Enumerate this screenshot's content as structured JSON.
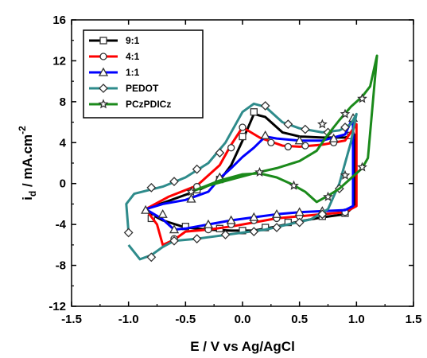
{
  "chart_data": {
    "type": "line",
    "xlabel": "E / V vs Ag/AgCl",
    "ylabel_main": "i",
    "ylabel_sub": "d",
    "ylabel_rest": " / mA.cm",
    "ylabel_sup": "-2",
    "xlim": [
      -1.5,
      1.5
    ],
    "ylim": [
      -12,
      16
    ],
    "xticks": [
      "-1.5",
      "-1.0",
      "-0.5",
      "0.0",
      "0.5",
      "1.0",
      "1.5"
    ],
    "yticks": [
      "-12",
      "-8",
      "-4",
      "0",
      "4",
      "8",
      "12",
      "16"
    ],
    "legend_position": "top-left",
    "grid": false,
    "series": [
      {
        "name": "9:1",
        "color": "#000000",
        "marker": "square",
        "points": [
          [
            -0.85,
            -2.5
          ],
          [
            -0.6,
            -1.5
          ],
          [
            -0.4,
            -0.7
          ],
          [
            -0.2,
            0.3
          ],
          [
            -0.1,
            1.8
          ],
          [
            0.0,
            4.2
          ],
          [
            0.1,
            6.8
          ],
          [
            0.2,
            6.5
          ],
          [
            0.35,
            5.0
          ],
          [
            0.5,
            4.6
          ],
          [
            0.7,
            4.5
          ],
          [
            0.9,
            4.5
          ],
          [
            0.98,
            4.8
          ],
          [
            0.98,
            -2.2
          ],
          [
            0.9,
            -3.0
          ],
          [
            0.7,
            -3.3
          ],
          [
            0.5,
            -3.7
          ],
          [
            0.3,
            -4.2
          ],
          [
            0.1,
            -4.6
          ],
          [
            -0.1,
            -4.6
          ],
          [
            -0.3,
            -4.5
          ],
          [
            -0.5,
            -4.3
          ],
          [
            -0.7,
            -3.6
          ],
          [
            -0.8,
            -3.0
          ],
          [
            -0.85,
            -2.5
          ]
        ],
        "markers": [
          [
            0.1,
            7.0
          ],
          [
            0.0,
            4.6
          ],
          [
            -0.2,
            0.4
          ],
          [
            -0.4,
            -0.6
          ],
          [
            -0.5,
            -4.2
          ],
          [
            -0.2,
            -4.4
          ],
          [
            0.0,
            -4.6
          ],
          [
            0.2,
            -4.3
          ],
          [
            0.4,
            -3.8
          ],
          [
            0.7,
            -3.2
          ],
          [
            0.9,
            -2.9
          ],
          [
            0.95,
            4.7
          ],
          [
            -0.8,
            -3.4
          ]
        ]
      },
      {
        "name": "4:1",
        "color": "#ff0000",
        "marker": "circle",
        "points": [
          [
            -0.85,
            -2.5
          ],
          [
            -0.65,
            -1.3
          ],
          [
            -0.4,
            -0.2
          ],
          [
            -0.2,
            1.8
          ],
          [
            -0.1,
            3.8
          ],
          [
            0.0,
            5.5
          ],
          [
            0.15,
            4.5
          ],
          [
            0.35,
            3.7
          ],
          [
            0.5,
            3.6
          ],
          [
            0.7,
            3.8
          ],
          [
            0.9,
            4.2
          ],
          [
            1.0,
            5.8
          ],
          [
            1.0,
            -2.2
          ],
          [
            0.9,
            -2.8
          ],
          [
            0.7,
            -3.0
          ],
          [
            0.5,
            -3.2
          ],
          [
            0.3,
            -3.4
          ],
          [
            0.1,
            -3.8
          ],
          [
            -0.1,
            -4.2
          ],
          [
            -0.3,
            -4.5
          ],
          [
            -0.5,
            -4.7
          ],
          [
            -0.6,
            -5.5
          ],
          [
            -0.7,
            -6.0
          ],
          [
            -0.75,
            -4.0
          ],
          [
            -0.85,
            -2.5
          ]
        ],
        "markers": [
          [
            0.0,
            5.5
          ],
          [
            -0.1,
            3.5
          ],
          [
            -0.4,
            -0.3
          ],
          [
            0.25,
            4.0
          ],
          [
            0.4,
            3.6
          ],
          [
            0.55,
            3.7
          ],
          [
            0.8,
            4.0
          ],
          [
            -0.3,
            -4.5
          ],
          [
            -0.1,
            -4.0
          ],
          [
            0.1,
            -3.6
          ],
          [
            0.3,
            -3.4
          ],
          [
            0.5,
            -3.2
          ],
          [
            0.7,
            -3.0
          ],
          [
            0.9,
            -2.8
          ],
          [
            -0.6,
            -5.4
          ]
        ]
      },
      {
        "name": "1:1",
        "color": "#0000ff",
        "marker": "triangle",
        "points": [
          [
            -0.85,
            -2.5
          ],
          [
            -0.7,
            -2.0
          ],
          [
            -0.5,
            -1.6
          ],
          [
            -0.3,
            -0.8
          ],
          [
            -0.2,
            0.5
          ],
          [
            -0.1,
            1.5
          ],
          [
            0.0,
            2.6
          ],
          [
            0.1,
            3.5
          ],
          [
            0.2,
            4.6
          ],
          [
            0.3,
            4.4
          ],
          [
            0.5,
            4.2
          ],
          [
            0.7,
            4.2
          ],
          [
            0.9,
            4.8
          ],
          [
            0.97,
            6.5
          ],
          [
            0.97,
            -2.2
          ],
          [
            0.9,
            -2.6
          ],
          [
            0.7,
            -2.7
          ],
          [
            0.5,
            -2.8
          ],
          [
            0.3,
            -3.0
          ],
          [
            0.1,
            -3.3
          ],
          [
            -0.1,
            -3.6
          ],
          [
            -0.3,
            -4.0
          ],
          [
            -0.5,
            -4.4
          ],
          [
            -0.6,
            -4.5
          ],
          [
            -0.7,
            -3.5
          ],
          [
            -0.85,
            -2.5
          ]
        ],
        "markers": [
          [
            0.2,
            4.7
          ],
          [
            -0.2,
            0.6
          ],
          [
            -0.45,
            -1.5
          ],
          [
            0.5,
            4.2
          ],
          [
            0.8,
            4.4
          ],
          [
            0.97,
            6.4
          ],
          [
            -0.6,
            -4.5
          ],
          [
            -0.3,
            -4.0
          ],
          [
            -0.1,
            -3.6
          ],
          [
            0.1,
            -3.3
          ],
          [
            0.3,
            -3.0
          ],
          [
            0.5,
            -2.8
          ],
          [
            0.7,
            -2.7
          ],
          [
            -0.7,
            -3.0
          ],
          [
            -0.85,
            -2.6
          ]
        ]
      },
      {
        "name": "PEDOT",
        "color": "#2e8b8b",
        "marker": "diamond",
        "points": [
          [
            -1.0,
            -4.8
          ],
          [
            -1.02,
            -2.0
          ],
          [
            -0.95,
            -1.0
          ],
          [
            -0.7,
            -0.3
          ],
          [
            -0.5,
            0.6
          ],
          [
            -0.3,
            2.0
          ],
          [
            -0.15,
            4.0
          ],
          [
            0.0,
            7.0
          ],
          [
            0.1,
            7.8
          ],
          [
            0.2,
            7.5
          ],
          [
            0.35,
            6.0
          ],
          [
            0.5,
            5.4
          ],
          [
            0.7,
            5.0
          ],
          [
            0.85,
            5.2
          ],
          [
            0.95,
            5.8
          ],
          [
            1.0,
            6.8
          ],
          [
            0.95,
            4.0
          ],
          [
            0.85,
            0.0
          ],
          [
            0.75,
            -2.5
          ],
          [
            0.6,
            -3.5
          ],
          [
            0.4,
            -4.0
          ],
          [
            0.2,
            -4.5
          ],
          [
            0.0,
            -4.8
          ],
          [
            -0.2,
            -5.1
          ],
          [
            -0.4,
            -5.4
          ],
          [
            -0.6,
            -5.6
          ],
          [
            -0.7,
            -6.2
          ],
          [
            -0.8,
            -7.0
          ],
          [
            -0.9,
            -7.4
          ],
          [
            -1.0,
            -6.0
          ]
        ],
        "markers": [
          [
            0.2,
            7.6
          ],
          [
            0.4,
            5.8
          ],
          [
            0.55,
            5.3
          ],
          [
            0.75,
            5.0
          ],
          [
            0.9,
            5.5
          ],
          [
            -0.2,
            3.0
          ],
          [
            -0.4,
            1.4
          ],
          [
            -0.6,
            0.2
          ],
          [
            -0.8,
            -0.4
          ],
          [
            -1.0,
            -4.8
          ],
          [
            -0.8,
            -7.2
          ],
          [
            -0.6,
            -5.6
          ],
          [
            -0.4,
            -5.4
          ],
          [
            -0.15,
            -5.0
          ],
          [
            0.1,
            -4.7
          ],
          [
            0.3,
            -4.3
          ],
          [
            0.5,
            -3.8
          ],
          [
            0.7,
            -3.0
          ],
          [
            0.85,
            -0.5
          ]
        ]
      },
      {
        "name": "PCzPDICz",
        "color": "#1b8a1b",
        "marker": "star",
        "points": [
          [
            -0.45,
            -0.8
          ],
          [
            -0.3,
            -0.2
          ],
          [
            -0.1,
            0.4
          ],
          [
            0.1,
            1.0
          ],
          [
            0.3,
            1.5
          ],
          [
            0.5,
            2.2
          ],
          [
            0.65,
            3.2
          ],
          [
            0.75,
            4.8
          ],
          [
            0.85,
            6.2
          ],
          [
            0.95,
            7.5
          ],
          [
            1.05,
            8.5
          ],
          [
            1.12,
            9.5
          ],
          [
            1.18,
            12.5
          ],
          [
            1.1,
            2.5
          ],
          [
            1.05,
            1.5
          ],
          [
            0.95,
            0.5
          ],
          [
            0.85,
            -0.5
          ],
          [
            0.75,
            -1.2
          ],
          [
            0.65,
            -1.8
          ],
          [
            0.55,
            -0.8
          ],
          [
            0.42,
            0.0
          ],
          [
            0.3,
            0.6
          ],
          [
            0.15,
            1.0
          ],
          [
            0.0,
            0.9
          ],
          [
            -0.2,
            0.3
          ],
          [
            -0.45,
            -0.8
          ]
        ],
        "markers": [
          [
            -0.45,
            -0.8
          ],
          [
            0.15,
            1.1
          ],
          [
            0.45,
            -0.2
          ],
          [
            0.75,
            -1.3
          ],
          [
            0.7,
            5.8
          ],
          [
            0.9,
            6.8
          ],
          [
            1.05,
            8.3
          ],
          [
            1.05,
            1.6
          ],
          [
            0.9,
            0.8
          ]
        ]
      }
    ]
  }
}
